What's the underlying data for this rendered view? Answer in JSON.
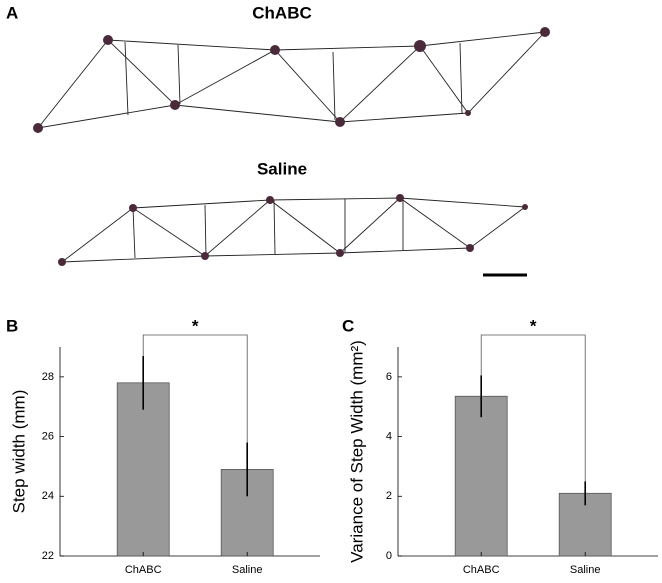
{
  "panel_a": {
    "label": "A",
    "titles": [
      "ChABC",
      "Saline"
    ]
  },
  "chart_data": [
    {
      "type": "bar",
      "panel": "B",
      "ylabel": "Step width (mm)",
      "categories": [
        "ChABC",
        "Saline"
      ],
      "values": [
        27.8,
        24.9
      ],
      "errors": [
        0.9,
        0.9
      ],
      "color": "#999999",
      "ylim": [
        22,
        29
      ],
      "yticks": [
        22,
        24,
        26,
        28
      ],
      "annotation": "*"
    },
    {
      "type": "bar",
      "panel": "C",
      "ylabel": "Variance of Step Width (mm²)",
      "categories": [
        "ChABC",
        "Saline"
      ],
      "values": [
        5.35,
        2.1
      ],
      "errors": [
        0.7,
        0.4
      ],
      "color": "#999999",
      "ylim": [
        0,
        7
      ],
      "yticks": [
        0,
        2,
        4,
        6
      ],
      "annotation": "*"
    }
  ]
}
